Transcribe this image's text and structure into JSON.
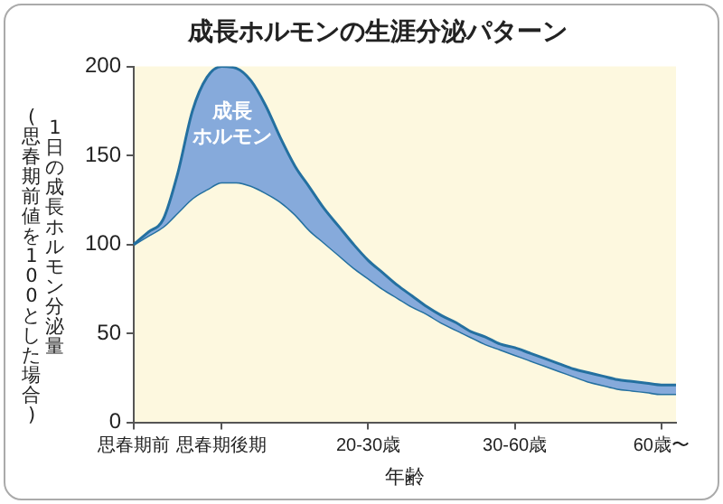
{
  "chart_data": {
    "type": "line",
    "title": "成長ホルモンの生涯分泌パターン",
    "xlabel": "年齢",
    "ylabel": "1日の成長ホルモン分泌量",
    "annotations": [
      "(思春期前値を100とした場合)"
    ],
    "categories": [
      "思春期前",
      null,
      null,
      null,
      null,
      null,
      "思春期後期",
      null,
      null,
      null,
      null,
      null,
      null,
      null,
      null,
      null,
      "20-30歳",
      null,
      null,
      null,
      null,
      null,
      null,
      null,
      null,
      null,
      "30-60歳",
      null,
      null,
      null,
      null,
      null,
      null,
      null,
      null,
      null,
      "60歳〜",
      null
    ],
    "ylim": [
      0,
      200
    ],
    "yticks": [
      0,
      50,
      100,
      150,
      200
    ],
    "grid": false,
    "legend": false,
    "marker": "none",
    "line_style": "solid",
    "series": [
      {
        "name": "成長ホルモン",
        "type": "area",
        "color": "#86aadb",
        "values": [
          100,
          107,
          114,
          140,
          175,
          194,
          200,
          199,
          192,
          178,
          160,
          144,
          132,
          120,
          110,
          100,
          91,
          84,
          77,
          71,
          65,
          60,
          56,
          51,
          48,
          44,
          42,
          39,
          36,
          33,
          30,
          28,
          26,
          24,
          23,
          22,
          21,
          21
        ]
      },
      {
        "type": "line",
        "color": "#2470a0",
        "values": [
          100,
          105,
          110,
          118,
          126,
          131,
          135,
          135,
          133,
          129,
          124,
          117,
          108,
          101,
          94,
          87,
          81,
          75,
          70,
          65,
          61,
          56,
          52,
          48,
          44,
          41,
          38,
          35,
          32,
          29,
          26,
          23,
          21,
          19,
          18,
          17,
          16,
          16
        ]
      }
    ]
  }
}
